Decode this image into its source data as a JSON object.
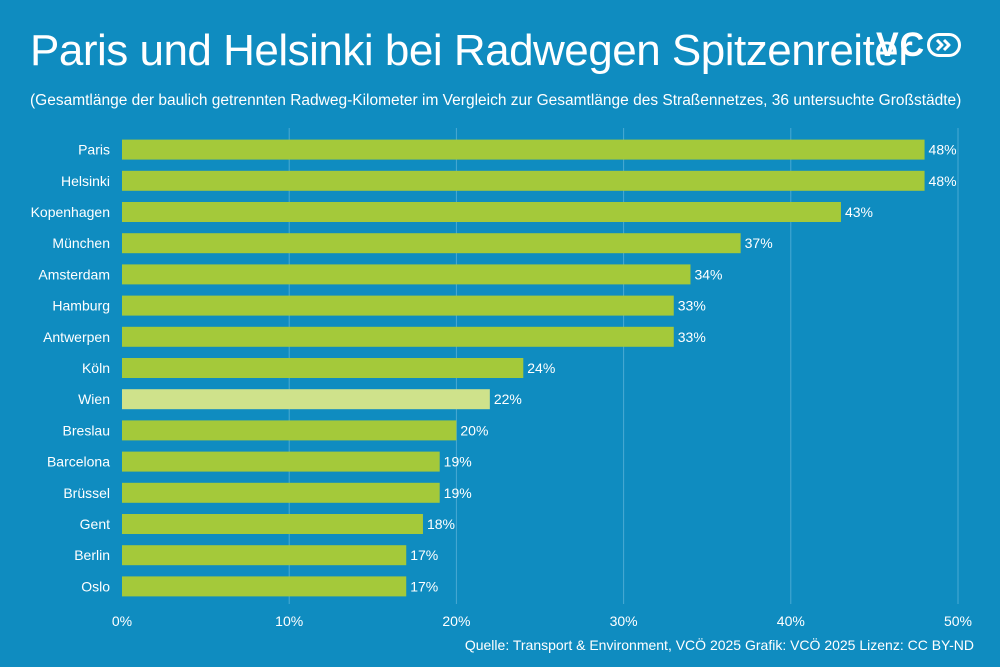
{
  "header": {
    "title": "Paris und Helsinki bei Radwegen Spitzenreiter",
    "subtitle": "(Gesamtlänge der baulich getrennten Radweg-Kilometer im Vergleich zur Gesamtlänge des Straßennetzes, 36 untersuchte Großstädte)",
    "logo_text": "VC"
  },
  "footer": {
    "source": "Quelle: Transport & Environment, VCÖ 2025 Grafik: VCÖ 2025 Lizenz: CC BY-ND"
  },
  "colors": {
    "background": "#0f8cc0",
    "bar": "#a4c93a",
    "bar_highlight": "#cfe28b",
    "grid": "#4aaad3",
    "text": "#ffffff"
  },
  "chart_data": {
    "type": "bar",
    "orientation": "horizontal",
    "title": "Paris und Helsinki bei Radwegen Spitzenreiter",
    "xlabel": "",
    "ylabel": "",
    "xlim": [
      0,
      50
    ],
    "xticks": [
      0,
      10,
      20,
      30,
      40,
      50
    ],
    "xtick_labels": [
      "0%",
      "10%",
      "20%",
      "30%",
      "40%",
      "50%"
    ],
    "grid": true,
    "highlight": "Wien",
    "categories": [
      "Paris",
      "Helsinki",
      "Kopenhagen",
      "München",
      "Amsterdam",
      "Hamburg",
      "Antwerpen",
      "Köln",
      "Wien",
      "Breslau",
      "Barcelona",
      "Brüssel",
      "Gent",
      "Berlin",
      "Oslo"
    ],
    "values": [
      48,
      48,
      43,
      37,
      34,
      33,
      33,
      24,
      22,
      20,
      19,
      19,
      18,
      17,
      17
    ],
    "value_labels": [
      "48%",
      "48%",
      "43%",
      "37%",
      "34%",
      "33%",
      "33%",
      "24%",
      "22%",
      "20%",
      "19%",
      "19%",
      "18%",
      "17%",
      "17%"
    ]
  }
}
